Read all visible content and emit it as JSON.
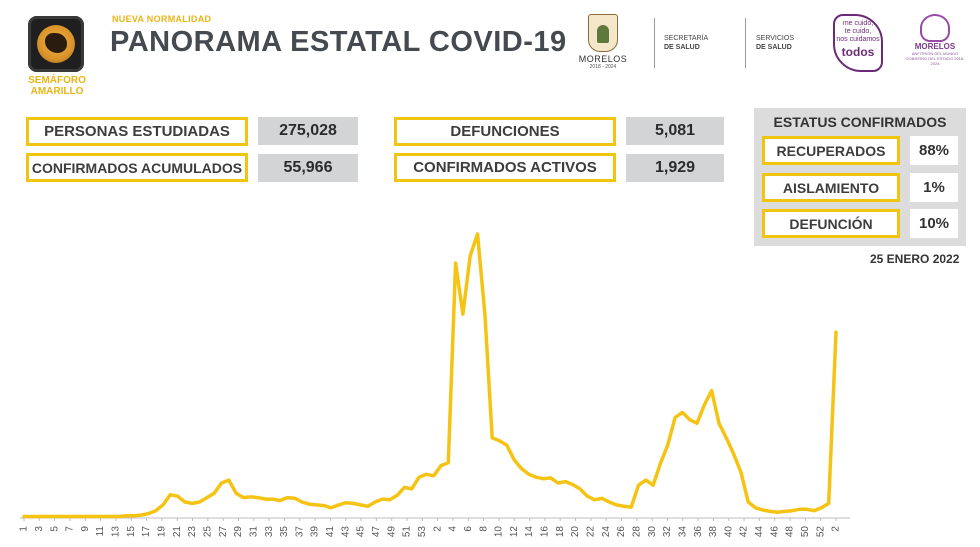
{
  "header": {
    "semaforo_label_line1": "SEMÁFORO",
    "semaforo_label_line2": "AMARILLO",
    "subtitle": "NUEVA NORMALIDAD",
    "title": "PANORAMA ESTATAL COVID-19"
  },
  "logos": {
    "morelos": "MORELOS",
    "morelos_years": "2018 - 2024",
    "secretaria_line1": "SECRETARÍA",
    "secretaria_line2": "DE SALUD",
    "servicios_line1": "SERVICIOS",
    "servicios_line2": "DE SALUD",
    "mecuido_line1": "me cuido,",
    "mecuido_line2": "te cuido,",
    "mecuido_line3": "nos cuidamos",
    "mecuido_line4": "todos",
    "lotus_name_line1": "MORELOS",
    "lotus_name_line2": "ANFITRIÓN DEL MUNDO",
    "lotus_tiny": "GOBIERNO DEL ESTADO 2018-2024"
  },
  "stats": {
    "personas_estudiadas": {
      "label": "PERSONAS ESTUDIADAS",
      "value": "275,028"
    },
    "confirmados_acumulados": {
      "label": "CONFIRMADOS ACUMULADOS",
      "value": "55,966"
    },
    "defunciones": {
      "label": "DEFUNCIONES",
      "value": "5,081"
    },
    "confirmados_activos": {
      "label": "CONFIRMADOS ACTIVOS",
      "value": "1,929"
    }
  },
  "status": {
    "title": "ESTATUS CONFIRMADOS",
    "recuperados": {
      "label": "RECUPERADOS",
      "value": "88%"
    },
    "aislamiento": {
      "label": "AISLAMIENTO",
      "value": "1%"
    },
    "defuncion": {
      "label": "DEFUNCIÓN",
      "value": "10%"
    }
  },
  "date": "25 ENERO 2022",
  "colors": {
    "accent": "#f0c40f",
    "line": "#f5c313",
    "value_bg": "#d2d4d6",
    "title": "#444a4f"
  },
  "chart_data": {
    "type": "line",
    "title": "",
    "xlabel": "",
    "ylabel": "",
    "grid": false,
    "x_tick_labels": [
      "1",
      "3",
      "5",
      "7",
      "9",
      "11",
      "13",
      "15",
      "17",
      "19",
      "21",
      "23",
      "25",
      "27",
      "29",
      "31",
      "33",
      "35",
      "37",
      "39",
      "41",
      "43",
      "45",
      "47",
      "49",
      "51",
      "53",
      "2",
      "4",
      "6",
      "8",
      "10",
      "12",
      "14",
      "16",
      "18",
      "20",
      "22",
      "24",
      "26",
      "28",
      "30",
      "32",
      "34",
      "36",
      "38",
      "40",
      "42",
      "44",
      "46",
      "48",
      "50",
      "52",
      "2"
    ],
    "series": [
      {
        "values": [
          2,
          2,
          2,
          2,
          2,
          2,
          2,
          2,
          2,
          2,
          2,
          2,
          2,
          2,
          3,
          3,
          4,
          6,
          10,
          18,
          32,
          30,
          22,
          20,
          22,
          28,
          34,
          48,
          52,
          34,
          28,
          29,
          28,
          26,
          26,
          24,
          28,
          27,
          22,
          19,
          18,
          17,
          14,
          18,
          21,
          20,
          18,
          16,
          22,
          26,
          25,
          31,
          42,
          40,
          56,
          60,
          58,
          72,
          76,
          350,
          280,
          360,
          390,
          280,
          110,
          106,
          100,
          80,
          68,
          60,
          56,
          54,
          55,
          48,
          50,
          46,
          40,
          30,
          25,
          27,
          22,
          18,
          16,
          15,
          45,
          52,
          45,
          75,
          100,
          138,
          145,
          135,
          130,
          155,
          175,
          130,
          110,
          88,
          63,
          22,
          14,
          11,
          9,
          8,
          9,
          10,
          12,
          12,
          10,
          14,
          20,
          255
        ]
      }
    ]
  }
}
